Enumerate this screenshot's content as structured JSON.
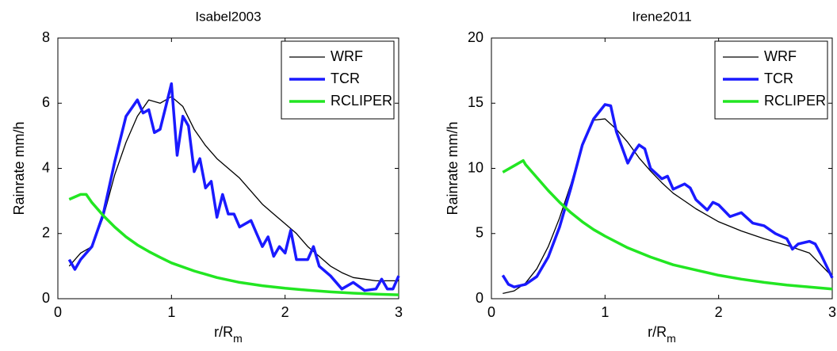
{
  "chart_data": [
    {
      "type": "line",
      "title": "Isabel2003",
      "xlabel": "r/R",
      "xlabel_subscript": "m",
      "ylabel": "Rainrate mm/h",
      "xlim": [
        0,
        3
      ],
      "xticks": [
        0,
        1,
        2,
        3
      ],
      "ylim": [
        0,
        8
      ],
      "yticks": [
        0,
        2,
        4,
        6,
        8
      ],
      "grid": false,
      "legend": "upper right",
      "series": [
        {
          "name": "WRF",
          "color": "#000000",
          "width": 1.3,
          "x": [
            0.1,
            0.2,
            0.3,
            0.4,
            0.5,
            0.6,
            0.7,
            0.8,
            0.9,
            1.0,
            1.1,
            1.2,
            1.3,
            1.4,
            1.5,
            1.6,
            1.7,
            1.8,
            1.9,
            2.0,
            2.1,
            2.2,
            2.3,
            2.4,
            2.5,
            2.6,
            2.7,
            2.8,
            2.9,
            3.0
          ],
          "values": [
            1.0,
            1.4,
            1.6,
            2.5,
            3.8,
            4.8,
            5.6,
            6.1,
            6.0,
            6.2,
            5.9,
            5.2,
            4.7,
            4.3,
            4.0,
            3.7,
            3.3,
            2.9,
            2.6,
            2.3,
            2.0,
            1.6,
            1.3,
            1.0,
            0.8,
            0.65,
            0.6,
            0.55,
            0.55,
            0.55
          ]
        },
        {
          "name": "TCR",
          "color": "#1a1aff",
          "width": 3.5,
          "x": [
            0.1,
            0.15,
            0.2,
            0.3,
            0.4,
            0.5,
            0.6,
            0.7,
            0.75,
            0.8,
            0.85,
            0.9,
            0.95,
            1.0,
            1.05,
            1.1,
            1.15,
            1.2,
            1.25,
            1.3,
            1.35,
            1.4,
            1.45,
            1.5,
            1.55,
            1.6,
            1.7,
            1.75,
            1.8,
            1.85,
            1.9,
            1.95,
            2.0,
            2.05,
            2.1,
            2.2,
            2.25,
            2.3,
            2.4,
            2.5,
            2.6,
            2.7,
            2.8,
            2.85,
            2.9,
            2.95,
            3.0
          ],
          "values": [
            1.2,
            0.9,
            1.2,
            1.6,
            2.6,
            4.2,
            5.6,
            6.1,
            5.7,
            5.8,
            5.1,
            5.2,
            5.9,
            6.6,
            4.4,
            5.6,
            5.3,
            3.9,
            4.3,
            3.4,
            3.6,
            2.5,
            3.2,
            2.6,
            2.6,
            2.2,
            2.4,
            2.0,
            1.6,
            1.9,
            1.3,
            1.6,
            1.4,
            2.1,
            1.2,
            1.2,
            1.6,
            1.0,
            0.7,
            0.3,
            0.5,
            0.25,
            0.3,
            0.6,
            0.3,
            0.3,
            0.7
          ]
        },
        {
          "name": "RCLIPER",
          "color": "#22e622",
          "width": 3.5,
          "x": [
            0.1,
            0.2,
            0.25,
            0.3,
            0.4,
            0.5,
            0.6,
            0.7,
            0.8,
            0.9,
            1.0,
            1.2,
            1.4,
            1.6,
            1.8,
            2.0,
            2.2,
            2.4,
            2.6,
            2.8,
            3.0
          ],
          "values": [
            3.05,
            3.2,
            3.2,
            2.95,
            2.55,
            2.2,
            1.9,
            1.65,
            1.45,
            1.27,
            1.1,
            0.85,
            0.65,
            0.5,
            0.4,
            0.32,
            0.26,
            0.21,
            0.17,
            0.14,
            0.12
          ]
        }
      ]
    },
    {
      "type": "line",
      "title": "Irene2011",
      "xlabel": "r/R",
      "xlabel_subscript": "m",
      "ylabel": "Rainrate mm/h",
      "xlim": [
        0,
        3
      ],
      "xticks": [
        0,
        1,
        2,
        3
      ],
      "ylim": [
        0,
        20
      ],
      "yticks": [
        0,
        5,
        10,
        15,
        20
      ],
      "grid": false,
      "legend": "upper right",
      "series": [
        {
          "name": "WRF",
          "color": "#000000",
          "width": 1.3,
          "x": [
            0.1,
            0.2,
            0.3,
            0.4,
            0.5,
            0.6,
            0.7,
            0.8,
            0.9,
            1.0,
            1.1,
            1.2,
            1.3,
            1.4,
            1.5,
            1.6,
            1.7,
            1.8,
            1.9,
            2.0,
            2.2,
            2.4,
            2.6,
            2.8,
            3.0
          ],
          "values": [
            0.4,
            0.6,
            1.2,
            2.3,
            4.0,
            6.2,
            8.8,
            11.8,
            13.7,
            13.8,
            13.0,
            12.0,
            10.8,
            9.8,
            8.9,
            8.1,
            7.5,
            6.9,
            6.4,
            5.9,
            5.2,
            4.6,
            4.1,
            3.5,
            1.7
          ]
        },
        {
          "name": "TCR",
          "color": "#1a1aff",
          "width": 3.5,
          "x": [
            0.1,
            0.15,
            0.2,
            0.3,
            0.4,
            0.5,
            0.6,
            0.7,
            0.8,
            0.9,
            1.0,
            1.05,
            1.1,
            1.2,
            1.25,
            1.3,
            1.35,
            1.4,
            1.5,
            1.55,
            1.6,
            1.7,
            1.75,
            1.8,
            1.9,
            1.95,
            2.0,
            2.1,
            2.2,
            2.3,
            2.4,
            2.5,
            2.6,
            2.65,
            2.7,
            2.8,
            2.85,
            2.9,
            3.0
          ],
          "values": [
            1.8,
            1.1,
            0.9,
            1.1,
            1.7,
            3.2,
            5.5,
            8.5,
            11.8,
            13.8,
            14.9,
            14.8,
            12.8,
            10.4,
            11.2,
            11.8,
            11.5,
            10.0,
            9.2,
            9.4,
            8.4,
            8.8,
            8.5,
            7.6,
            6.8,
            7.4,
            7.2,
            6.3,
            6.6,
            5.8,
            5.6,
            5.0,
            4.6,
            3.8,
            4.2,
            4.4,
            4.2,
            3.4,
            1.6
          ]
        },
        {
          "name": "RCLIPER",
          "color": "#22e622",
          "width": 3.5,
          "x": [
            0.1,
            0.2,
            0.28,
            0.3,
            0.4,
            0.5,
            0.6,
            0.7,
            0.8,
            0.9,
            1.0,
            1.2,
            1.4,
            1.6,
            1.8,
            2.0,
            2.2,
            2.4,
            2.6,
            2.8,
            3.0
          ],
          "values": [
            9.7,
            10.2,
            10.6,
            10.3,
            9.3,
            8.3,
            7.4,
            6.6,
            5.9,
            5.3,
            4.8,
            3.9,
            3.2,
            2.6,
            2.2,
            1.8,
            1.5,
            1.25,
            1.05,
            0.9,
            0.75
          ]
        }
      ]
    }
  ]
}
